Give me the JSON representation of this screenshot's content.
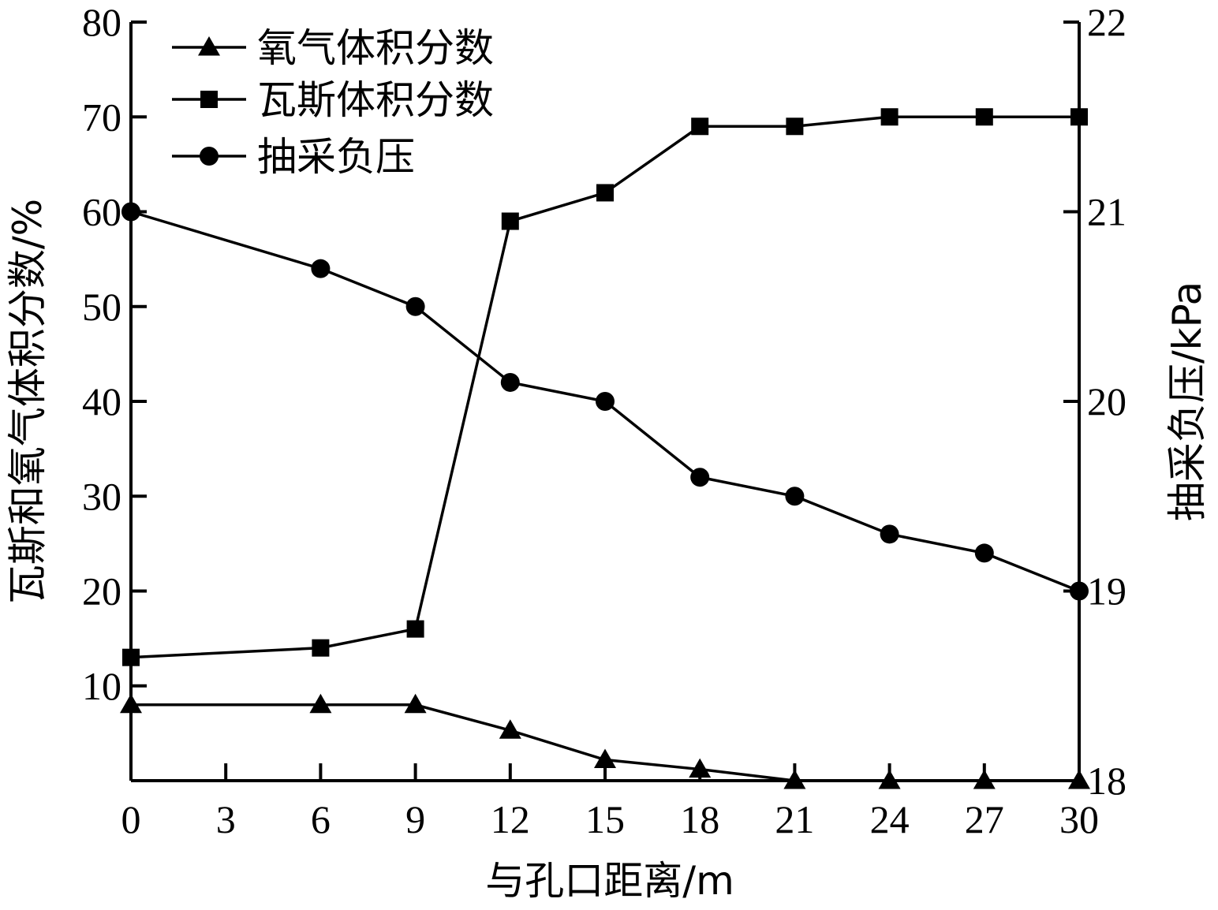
{
  "chart_data": {
    "type": "line",
    "xlabel": "与孔口距离/m",
    "ylabel_left": "瓦斯和氧气体积分数/%",
    "ylabel_right": "抽采负压/kPa",
    "xlim": [
      0,
      30
    ],
    "xticks": [
      0,
      3,
      6,
      9,
      12,
      15,
      18,
      21,
      24,
      27,
      30
    ],
    "ylim_left": [
      0,
      80
    ],
    "yticks_left": [
      10,
      20,
      30,
      40,
      50,
      60,
      70,
      80
    ],
    "ylim_right": [
      18,
      22
    ],
    "yticks_right": [
      18,
      19,
      20,
      21,
      22
    ],
    "legend_position": "top-left",
    "grid": false,
    "series": [
      {
        "name": "氧气体积分数",
        "axis": "left",
        "marker": "triangle",
        "x": [
          0,
          6,
          9,
          12,
          15,
          18,
          21,
          24,
          27,
          30
        ],
        "values": [
          8,
          8,
          8,
          5.3,
          2.2,
          1.2,
          0,
          0,
          0,
          0
        ]
      },
      {
        "name": "瓦斯体积分数",
        "axis": "left",
        "marker": "square",
        "x": [
          0,
          6,
          9,
          12,
          15,
          18,
          21,
          24,
          27,
          30
        ],
        "values": [
          13,
          14,
          16,
          59,
          62,
          69,
          69,
          70,
          70,
          70
        ]
      },
      {
        "name": "抽采负压",
        "axis": "right",
        "marker": "circle",
        "x": [
          0,
          6,
          9,
          12,
          15,
          18,
          21,
          24,
          27,
          30
        ],
        "values": [
          21.0,
          20.7,
          20.5,
          20.1,
          20.0,
          19.6,
          19.5,
          19.3,
          19.2,
          19.0
        ]
      }
    ]
  }
}
